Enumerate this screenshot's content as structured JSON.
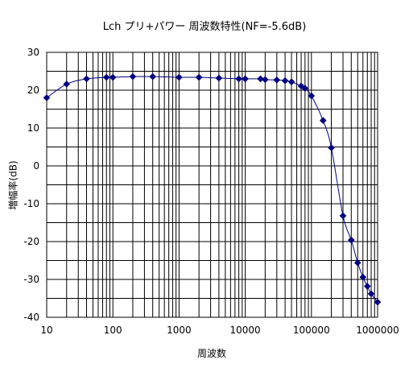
{
  "chart_data": {
    "type": "line",
    "title": "Lch プリ+パワー 周波数特性(NF=-5.6dB)",
    "xlabel": "周波数",
    "ylabel": "増幅率(dB)",
    "x_scale": "log",
    "xlim": [
      10,
      1000000
    ],
    "ylim": [
      -40,
      30
    ],
    "x_ticks": [
      10,
      100,
      1000,
      10000,
      100000,
      1000000
    ],
    "y_ticks": [
      30,
      20,
      10,
      0,
      -10,
      -20,
      -30,
      -40
    ],
    "grid": true,
    "legend": "none",
    "series": [
      {
        "color": "#000080",
        "marker": "diamond",
        "x": [
          10,
          20,
          40,
          80,
          100,
          200,
          400,
          1000,
          2000,
          4000,
          8000,
          10000,
          17000,
          20000,
          30000,
          40000,
          50000,
          70000,
          80000,
          100000,
          150000,
          200000,
          300000,
          400000,
          500000,
          600000,
          700000,
          800000,
          1000000
        ],
        "values": [
          18.0,
          21.6,
          23.0,
          23.4,
          23.4,
          23.6,
          23.6,
          23.4,
          23.4,
          23.2,
          23.0,
          23.0,
          23.0,
          22.8,
          22.7,
          22.5,
          22.2,
          21.1,
          20.5,
          18.5,
          12.0,
          4.8,
          -13.2,
          -19.6,
          -25.6,
          -29.4,
          -31.8,
          -33.8,
          -36.0
        ]
      }
    ]
  }
}
